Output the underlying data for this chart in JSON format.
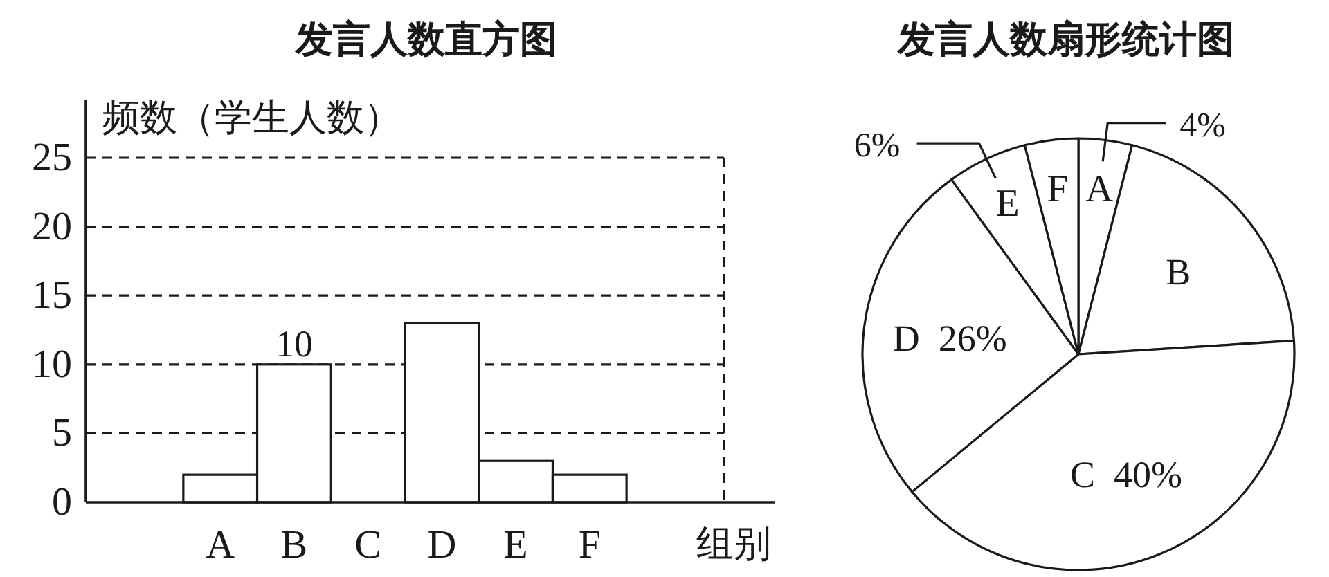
{
  "chart_data": [
    {
      "type": "bar",
      "title": "发言人数直方图",
      "xlabel": "组别",
      "ylabel": "频数（学生人数）",
      "categories": [
        "A",
        "B",
        "C",
        "D",
        "E",
        "F"
      ],
      "values": [
        2,
        10,
        null,
        13,
        3,
        2
      ],
      "value_labels": [
        null,
        "10",
        null,
        null,
        null,
        null
      ],
      "color": "#ffffff",
      "ylim": [
        0,
        25
      ],
      "yticks": [
        0,
        5,
        10,
        15,
        20,
        25
      ],
      "grid": "y"
    },
    {
      "type": "pie",
      "title": "发言人数扇形统计图",
      "categories": [
        "A",
        "B",
        "C",
        "D",
        "E",
        "F"
      ],
      "values": [
        4,
        20,
        40,
        26,
        6,
        4
      ],
      "value_labels": [
        "4%",
        null,
        "40%",
        "26%",
        "6%",
        null
      ],
      "colors": [
        "#ffffff",
        "#ffffff",
        "#ffffff",
        "#ffffff",
        "#ffffff",
        "#ffffff"
      ]
    }
  ]
}
